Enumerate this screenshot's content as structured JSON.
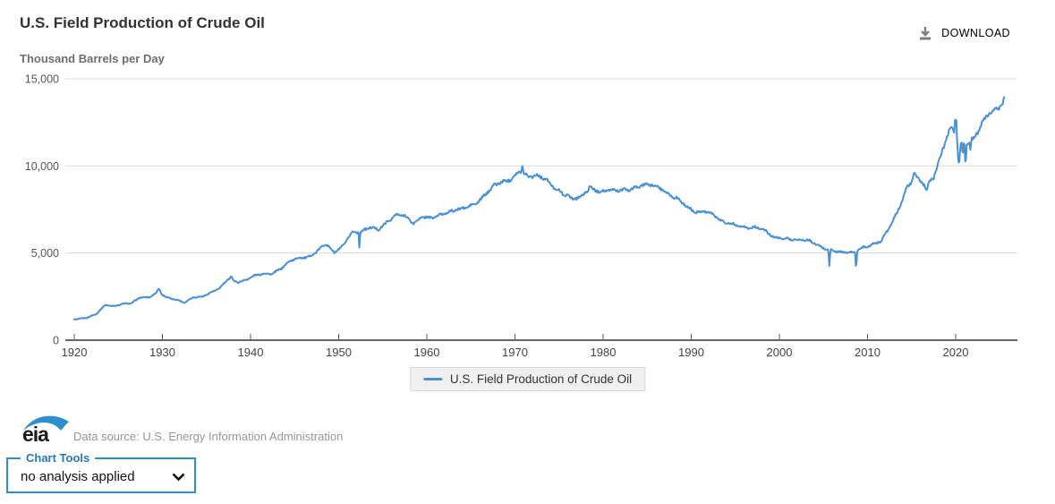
{
  "header": {
    "title": "U.S. Field Production of Crude Oil",
    "download_label": "DOWNLOAD"
  },
  "chart": {
    "unit_label": "Thousand Barrels per Day",
    "legend_label": "U.S. Field Production of Crude Oil",
    "line_color": "#4a90d2",
    "grid_color": "#d9d9d9",
    "axis_color": "#666666",
    "tick_label_color": "#444444"
  },
  "chart_data": {
    "type": "line",
    "title": "U.S. Field Production of Crude Oil",
    "ylabel": "Thousand Barrels per Day",
    "xlabel": "",
    "ylim": [
      0,
      15000
    ],
    "xlim": [
      1920,
      2026.6
    ],
    "grid": "horizontal",
    "legend_position": "bottom-center",
    "y_ticks": [
      0,
      5000,
      10000,
      15000
    ],
    "y_tick_labels": [
      "0",
      "5,000",
      "10,000",
      "15,000"
    ],
    "x_ticks": [
      1920,
      1930,
      1940,
      1950,
      1960,
      1970,
      1980,
      1990,
      2000,
      2010,
      2020
    ],
    "series": [
      {
        "name": "U.S. Field Production of Crude Oil",
        "color": "#4a90d2",
        "start_year": 1920,
        "end_x": 2025.58,
        "annual_values": [
          1210,
          1290,
          1520,
          2010,
          1950,
          2090,
          2110,
          2470,
          2460,
          2760,
          2460,
          2330,
          2150,
          2480,
          2480,
          2730,
          3000,
          3500,
          3330,
          3470,
          3700,
          3840,
          3800,
          4120,
          4580,
          4700,
          4750,
          5090,
          5520,
          5050,
          5410,
          6160,
          6260,
          6460,
          6340,
          6810,
          7150,
          7170,
          6710,
          7050,
          7040,
          7180,
          7330,
          7540,
          7600,
          7800,
          8300,
          8810,
          9100,
          9240,
          9640,
          9460,
          9440,
          9210,
          8770,
          8370,
          8130,
          8250,
          8710,
          8550,
          8600,
          8570,
          8650,
          8690,
          8880,
          8970,
          8680,
          8350,
          8140,
          7610,
          7360,
          7420,
          7170,
          6850,
          6660,
          6560,
          6460,
          6450,
          6250,
          5880,
          5820,
          5800,
          5750,
          5680,
          5420,
          5180,
          5090,
          5060,
          5000,
          5350,
          5480,
          5650,
          6500,
          7470,
          8760,
          9430,
          8860,
          9350,
          10950,
          12250,
          11320,
          11250,
          11910,
          12930,
          13210,
          13500
        ],
        "anomalies": [
          {
            "x": 1929.6,
            "value": 2960,
            "width": 0.3
          },
          {
            "x": 1937.8,
            "value": 3680,
            "width": 0.25
          },
          {
            "x": 1952.35,
            "value": 5150,
            "width": 0.1
          },
          {
            "x": 1970.85,
            "value": 10040,
            "width": 0.15
          },
          {
            "x": 2005.67,
            "value": 4230,
            "width": 0.12
          },
          {
            "x": 2008.7,
            "value": 3970,
            "width": 0.12
          },
          {
            "x": 2015.3,
            "value": 9650,
            "width": 0.25
          },
          {
            "x": 2016.7,
            "value": 8560,
            "width": 0.3
          },
          {
            "x": 2019.95,
            "value": 12860,
            "width": 0.12
          },
          {
            "x": 2020.05,
            "value": 12750,
            "width": 0.18
          },
          {
            "x": 2020.37,
            "value": 10000,
            "width": 0.28
          },
          {
            "x": 2020.6,
            "value": 11300,
            "width": 0.15
          },
          {
            "x": 2020.8,
            "value": 10580,
            "width": 0.12
          },
          {
            "x": 2021.12,
            "value": 9870,
            "width": 0.12
          },
          {
            "x": 2021.67,
            "value": 10900,
            "width": 0.1
          },
          {
            "x": 2025.5,
            "value": 13950,
            "width": 0.2
          }
        ]
      }
    ]
  },
  "footer": {
    "logo_text": "eia",
    "data_source": "Data source: U.S. Energy Information Administration",
    "chart_tools_label": "Chart Tools",
    "analysis_value": "no analysis applied"
  }
}
